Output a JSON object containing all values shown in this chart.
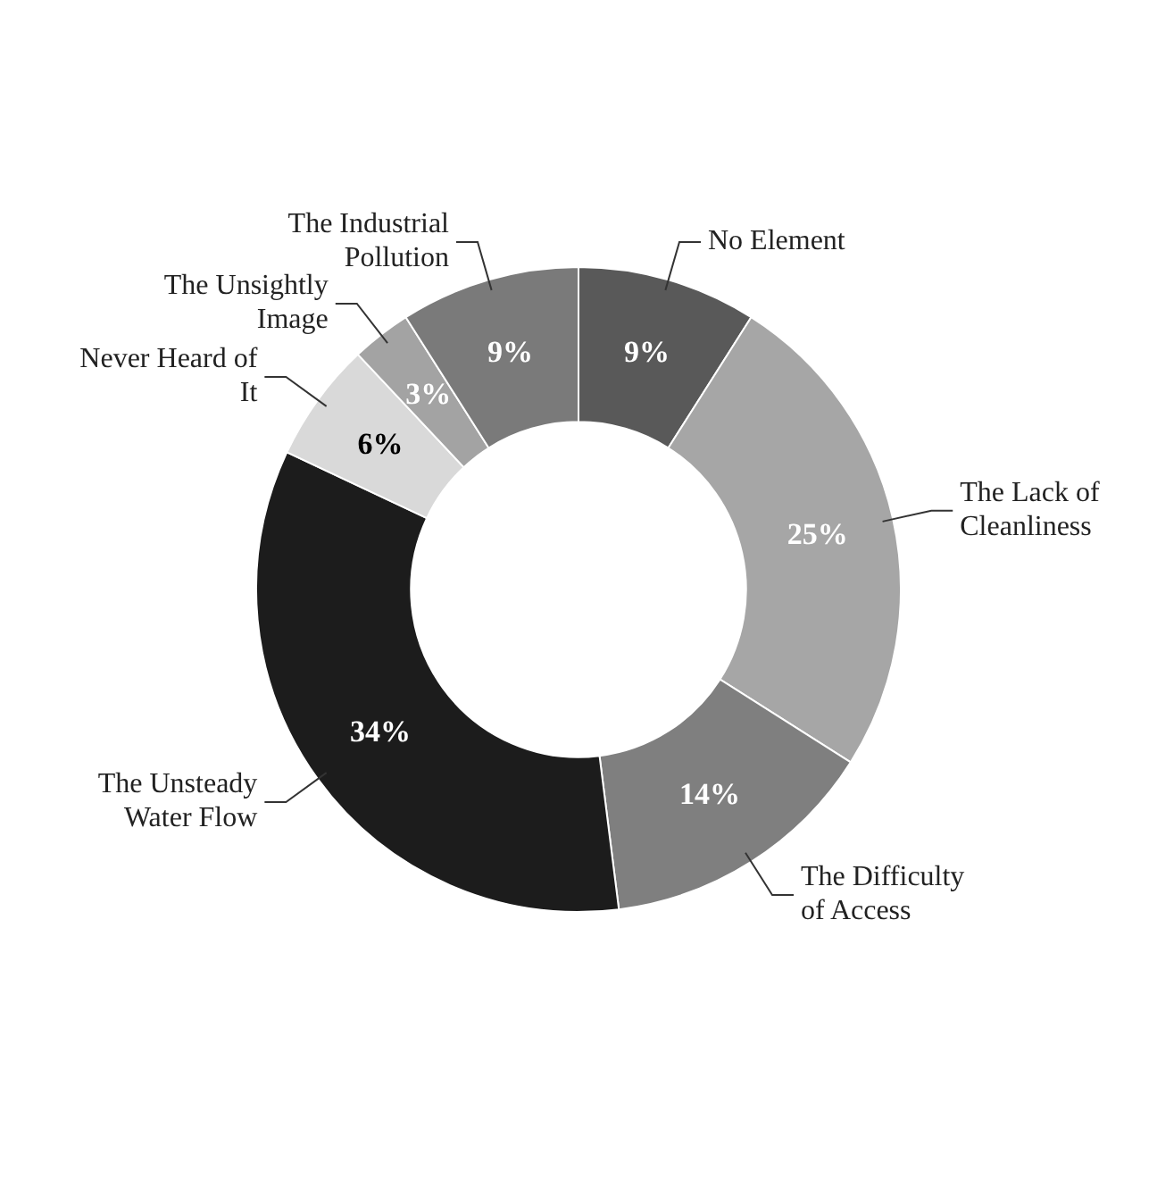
{
  "chart_data": {
    "type": "donut",
    "categories": [
      "No Element",
      "The Lack of Cleanliness",
      "The Difficulty of Access",
      "The Unsteady Water Flow",
      "Never Heard of It",
      "The Unsightly Image",
      "The Industrial Pollution"
    ],
    "values": [
      9,
      25,
      14,
      34,
      6,
      3,
      9
    ],
    "value_labels": [
      "9%",
      "25%",
      "14%",
      "34%",
      "6%",
      "3%",
      "9%"
    ],
    "colors": [
      "#595959",
      "#a6a6a6",
      "#7f7f7f",
      "#1c1c1c",
      "#d9d9d9",
      "#a3a3a3",
      "#7a7a7a"
    ],
    "legend": false
  }
}
